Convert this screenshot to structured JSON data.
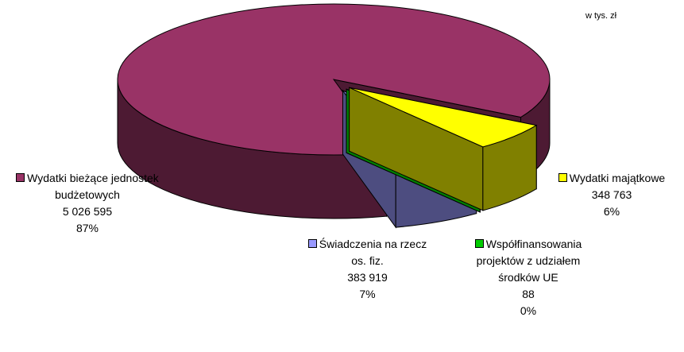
{
  "chart_data": {
    "type": "pie3d",
    "subtitle": "w tys. zł",
    "categories": [
      "Wydatki majątkowe",
      "Współfinansowania projektów z udziałem środków UE",
      "Świadczenia na rzecz os. fiz.",
      "Wydatki bieżące jednostek budżetowych"
    ],
    "values": [
      348763,
      88,
      383919,
      5026595
    ],
    "value_labels": [
      "348 763",
      "88",
      "383 919",
      "5 026 595"
    ],
    "percent_labels": [
      "6%",
      "0%",
      "7%",
      "87%"
    ],
    "colors": [
      "#ffff00",
      "#00cc00",
      "#9999ff",
      "#993366"
    ],
    "side_colors": [
      "#808000",
      "#008000",
      "#4d4d80",
      "#4d1a33"
    ],
    "exploded": [
      true,
      true,
      true,
      false
    ]
  }
}
